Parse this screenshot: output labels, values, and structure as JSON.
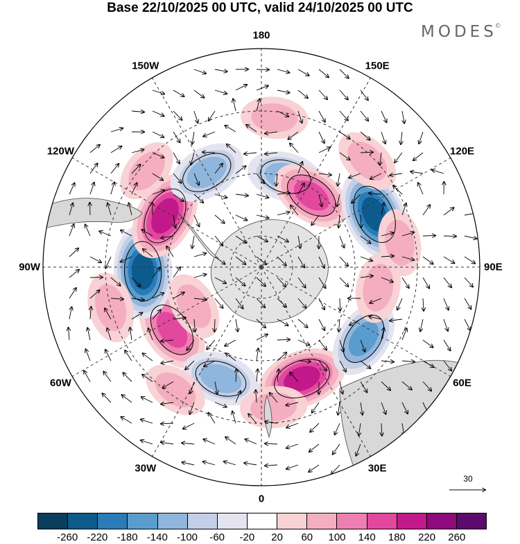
{
  "title": "Base 22/10/2025 00 UTC, valid 24/10/2025 00 UTC",
  "brand": {
    "name": "MODES",
    "mark": "©"
  },
  "longitude_labels": [
    {
      "text": "0",
      "lon": 0
    },
    {
      "text": "30E",
      "lon": 30
    },
    {
      "text": "60E",
      "lon": 60
    },
    {
      "text": "90E",
      "lon": 90
    },
    {
      "text": "120E",
      "lon": 120
    },
    {
      "text": "150E",
      "lon": 150
    },
    {
      "text": "180",
      "lon": 180
    },
    {
      "text": "150W",
      "lon": -150
    },
    {
      "text": "120W",
      "lon": -120
    },
    {
      "text": "90W",
      "lon": -90
    },
    {
      "text": "60W",
      "lon": -60
    },
    {
      "text": "30W",
      "lon": -30
    }
  ],
  "reference_vector": {
    "label": "30"
  },
  "colorbar": {
    "ticks": [
      "-260",
      "-220",
      "-180",
      "-140",
      "-100",
      "-60",
      "-20",
      "20",
      "60",
      "100",
      "140",
      "180",
      "220",
      "260"
    ],
    "colors": [
      "#0b3d5c",
      "#0d5b8c",
      "#2b7bb9",
      "#5a9ccd",
      "#8fb6dc",
      "#c3cfe6",
      "#e4e3f0",
      "#ffffff",
      "#f8d2d4",
      "#f4aec0",
      "#ef7fb2",
      "#e2489d",
      "#c2198a",
      "#8d0b7c",
      "#5c0a6e"
    ]
  },
  "map": {
    "projection": "south-polar-stereographic",
    "anomalies": [
      {
        "lon": -55,
        "colat": 35,
        "value": 150
      },
      {
        "lon": 20,
        "colat": 38,
        "value": 170
      },
      {
        "lon": 55,
        "colat": 40,
        "value": -120
      },
      {
        "lon": -20,
        "colat": 38,
        "value": -110
      },
      {
        "lon": 5,
        "colat": 45,
        "value": 40
      },
      {
        "lon": -88,
        "colat": 38,
        "value": -200
      },
      {
        "lon": -118,
        "colat": 35,
        "value": 180
      },
      {
        "lon": -150,
        "colat": 35,
        "value": -110
      },
      {
        "lon": 165,
        "colat": 30,
        "value": -100
      },
      {
        "lon": 145,
        "colat": 28,
        "value": 130
      },
      {
        "lon": 115,
        "colat": 40,
        "value": -200
      },
      {
        "lon": 80,
        "colat": 38,
        "value": 60
      },
      {
        "lon": 100,
        "colat": 45,
        "value": 40
      },
      {
        "lon": 135,
        "colat": 48,
        "value": 50
      },
      {
        "lon": 175,
        "colat": 48,
        "value": 40
      },
      {
        "lon": -75,
        "colat": 50,
        "value": 60
      },
      {
        "lon": -35,
        "colat": 48,
        "value": 30
      },
      {
        "lon": -130,
        "colat": 48,
        "value": 30
      },
      {
        "lon": -60,
        "colat": 25,
        "value": 50
      }
    ]
  }
}
